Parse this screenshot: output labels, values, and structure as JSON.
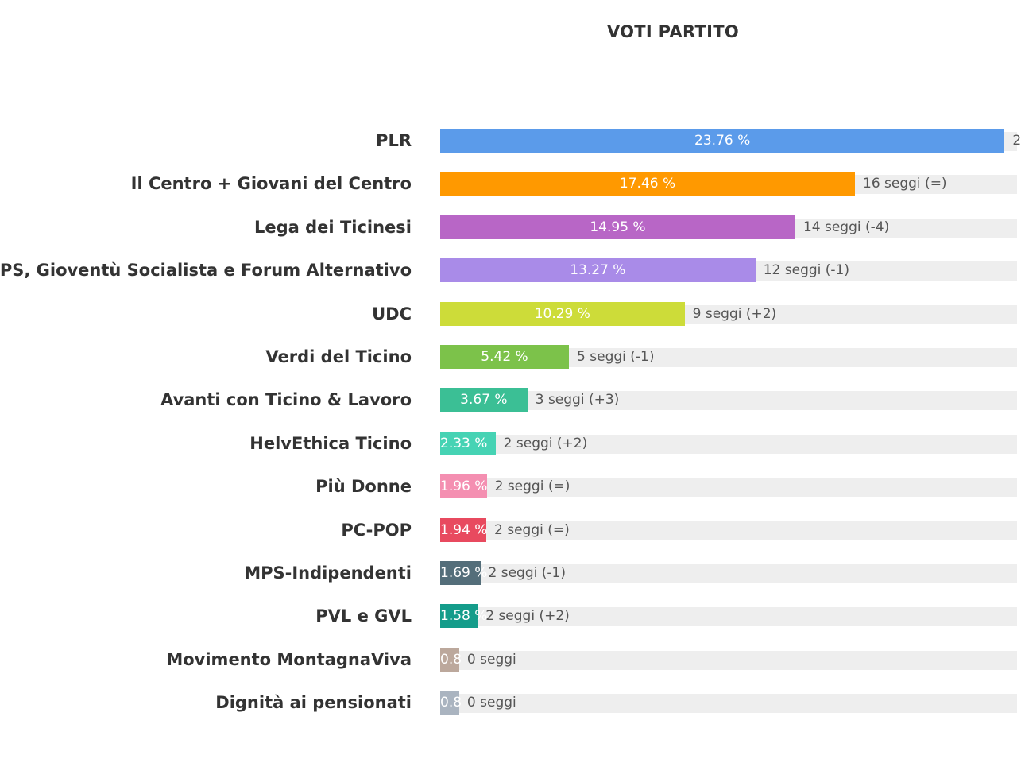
{
  "chart_data": {
    "type": "bar",
    "orientation": "horizontal",
    "title": "VOTI PARTITO",
    "xlim": [
      0,
      24.25
    ],
    "grid": false,
    "legend": "none",
    "categories": [
      "PLR",
      "Il Centro + Giovani del Centro",
      "Lega dei Ticinesi",
      "PS, Gioventù Socialista e Forum Alternativo",
      "UDC",
      "Verdi del Ticino",
      "Avanti con Ticino & Lavoro",
      "HelvEthica Ticino",
      "Più Donne",
      "PC-POP",
      "MPS-Indipendenti",
      "PVL e GVL",
      "Movimento MontagnaViva",
      "Dignità ai pensionati"
    ],
    "values": [
      23.76,
      17.46,
      14.95,
      13.27,
      10.29,
      5.42,
      3.67,
      2.33,
      1.96,
      1.94,
      1.69,
      1.58,
      0.8,
      0.8
    ],
    "value_labels": [
      "23.76 %",
      "17.46 %",
      "14.95 %",
      "13.27 %",
      "10.29 %",
      "5.42 %",
      "3.67 %",
      "2.33 %",
      "1.96 %",
      "1.94 %",
      "1.69 %",
      "1.58 %",
      "0.8",
      "0.8"
    ],
    "seat_labels": [
      "2",
      "16 seggi (=)",
      "14 seggi (-4)",
      "12 seggi (-1)",
      "9 seggi (+2)",
      "5 seggi (-1)",
      "3 seggi (+3)",
      "2 seggi (+2)",
      "2 seggi (=)",
      "2 seggi (=)",
      "2 seggi (-1)",
      "2 seggi (+2)",
      "0 seggi",
      "0 seggi"
    ],
    "colors": [
      "#5b9bea",
      "#ff9900",
      "#b866c6",
      "#a98be8",
      "#cddc39",
      "#7cc24a",
      "#3bbf95",
      "#46d3b4",
      "#f48fb1",
      "#e84a5f",
      "#546e7a",
      "#149c8a",
      "#bca89c",
      "#aab4c0"
    ]
  }
}
